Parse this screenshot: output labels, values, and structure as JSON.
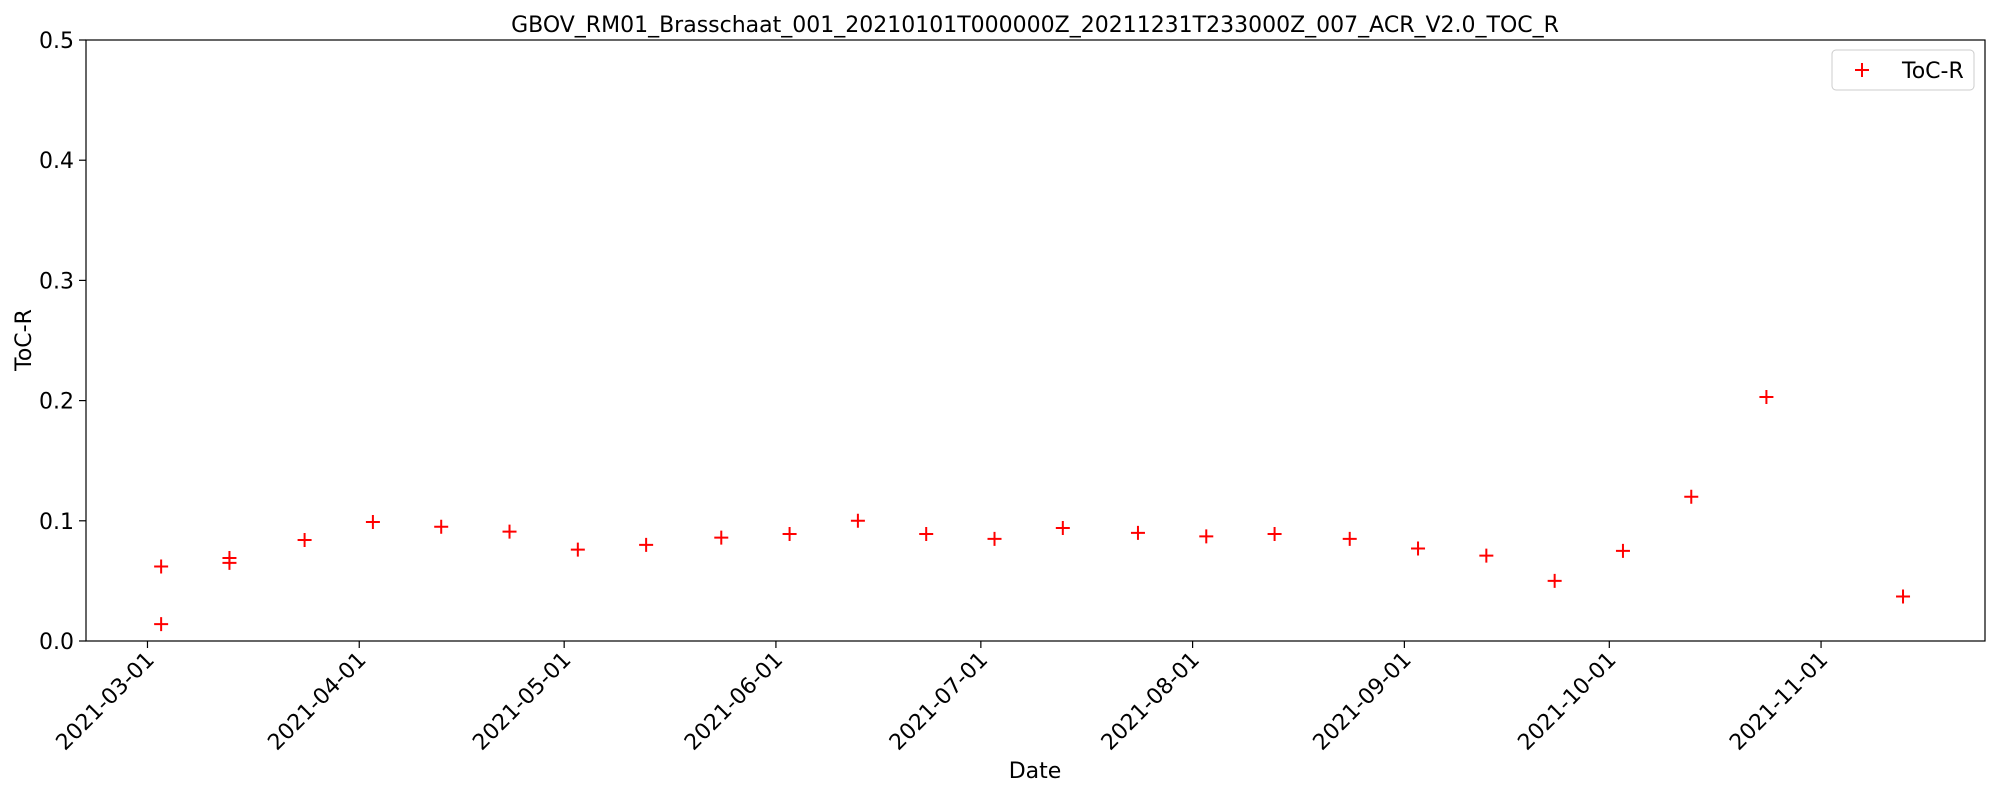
{
  "chart_data": {
    "type": "scatter",
    "title": "GBOV_RM01_Brasschaat_001_20210101T000000Z_20211231T233000Z_007_ACR_V2.0_TOC_R",
    "xlabel": "Date",
    "ylabel": "ToC-R",
    "xlim": [
      "2021-02-20",
      "2021-11-25"
    ],
    "ylim": [
      0.0,
      0.5
    ],
    "x_ticks": [
      "2021-03-01",
      "2021-04-01",
      "2021-05-01",
      "2021-06-01",
      "2021-07-01",
      "2021-08-01",
      "2021-09-01",
      "2021-10-01",
      "2021-11-01"
    ],
    "y_ticks": [
      "0.0",
      "0.1",
      "0.2",
      "0.3",
      "0.4",
      "0.5"
    ],
    "grid": false,
    "legend_placement": "top-right",
    "series": [
      {
        "name": "ToC-R",
        "color": "#ff0000",
        "marker": "plus",
        "points": [
          {
            "x": "2021-03-03",
            "y": 0.062
          },
          {
            "x": "2021-03-03",
            "y": 0.014
          },
          {
            "x": "2021-03-13",
            "y": 0.069
          },
          {
            "x": "2021-03-13",
            "y": 0.065
          },
          {
            "x": "2021-03-24",
            "y": 0.084
          },
          {
            "x": "2021-04-03",
            "y": 0.099
          },
          {
            "x": "2021-04-13",
            "y": 0.095
          },
          {
            "x": "2021-04-23",
            "y": 0.091
          },
          {
            "x": "2021-05-03",
            "y": 0.076
          },
          {
            "x": "2021-05-13",
            "y": 0.08
          },
          {
            "x": "2021-05-24",
            "y": 0.086
          },
          {
            "x": "2021-06-03",
            "y": 0.089
          },
          {
            "x": "2021-06-13",
            "y": 0.1
          },
          {
            "x": "2021-06-23",
            "y": 0.089
          },
          {
            "x": "2021-07-03",
            "y": 0.085
          },
          {
            "x": "2021-07-13",
            "y": 0.094
          },
          {
            "x": "2021-07-24",
            "y": 0.09
          },
          {
            "x": "2021-08-03",
            "y": 0.087
          },
          {
            "x": "2021-08-13",
            "y": 0.089
          },
          {
            "x": "2021-08-24",
            "y": 0.085
          },
          {
            "x": "2021-09-03",
            "y": 0.077
          },
          {
            "x": "2021-09-13",
            "y": 0.071
          },
          {
            "x": "2021-09-23",
            "y": 0.05
          },
          {
            "x": "2021-10-03",
            "y": 0.075
          },
          {
            "x": "2021-10-13",
            "y": 0.12
          },
          {
            "x": "2021-10-24",
            "y": 0.203
          },
          {
            "x": "2021-11-13",
            "y": 0.037
          }
        ]
      }
    ]
  }
}
